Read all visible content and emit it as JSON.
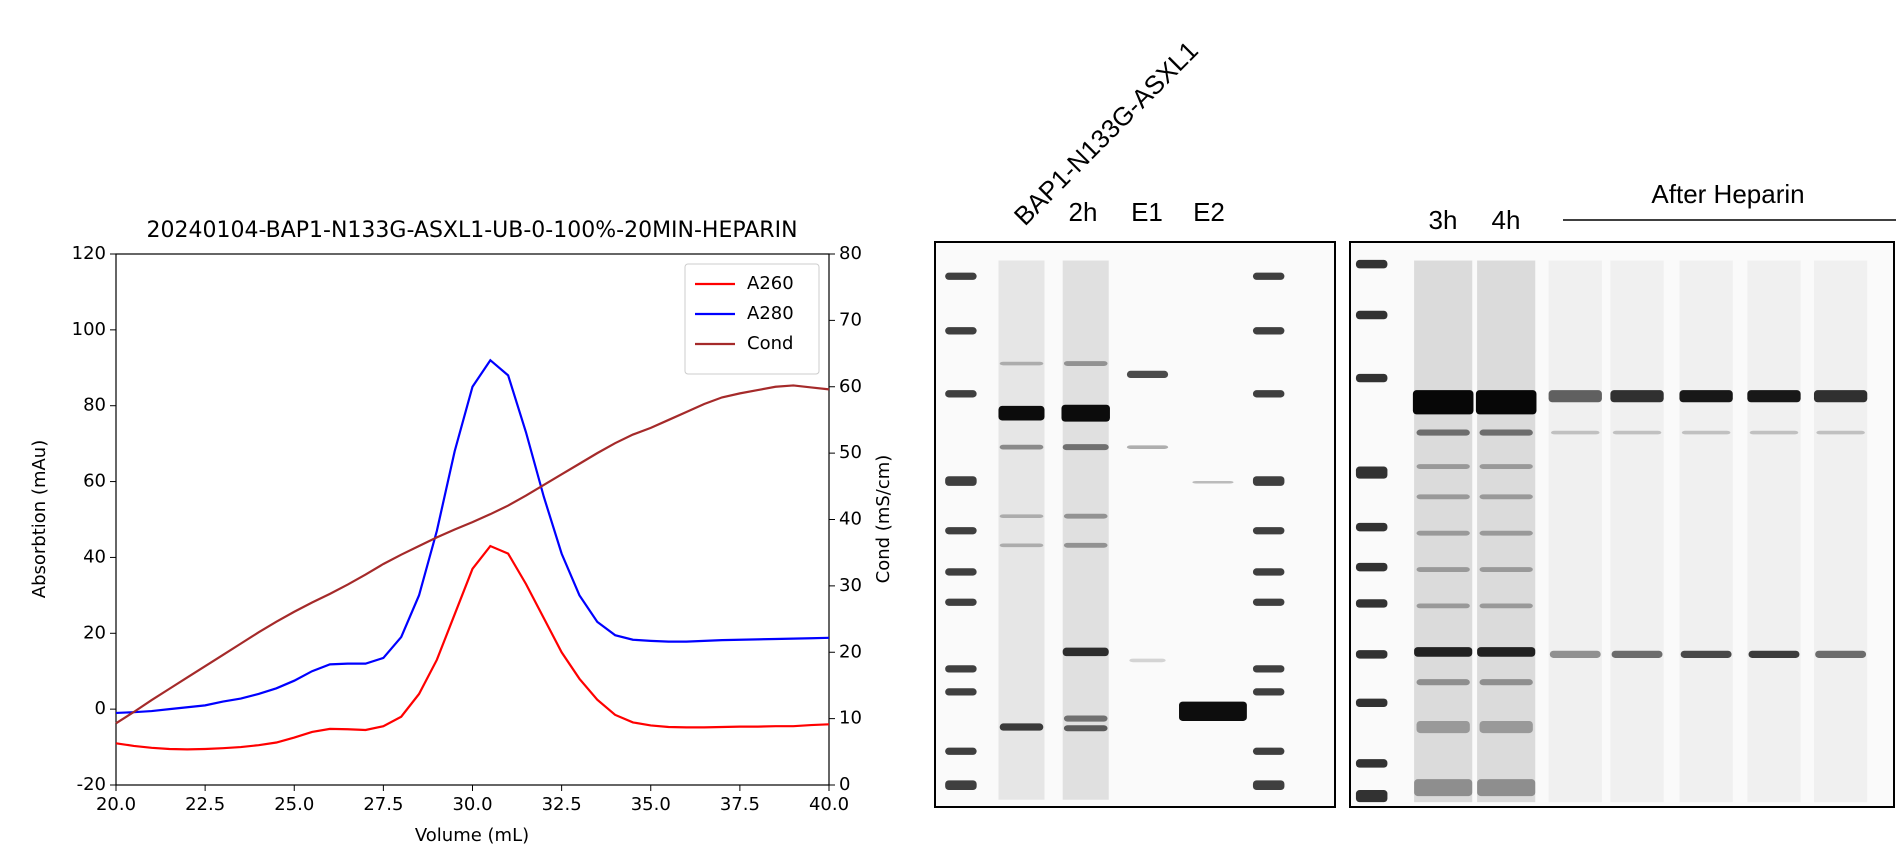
{
  "chart_data": {
    "type": "line",
    "title": "20240104-BAP1-N133G-ASXL1-UB-0-100%-20MIN-HEPARIN",
    "xlabel": "Volume (mL)",
    "ylabel": "Absorbtion (mAu)",
    "y2label": "Cond (mS/cm)",
    "x": [
      20,
      20.5,
      21,
      21.5,
      22,
      22.5,
      23,
      23.5,
      24,
      24.5,
      25,
      25.5,
      26,
      26.5,
      27,
      27.5,
      28,
      28.5,
      29,
      29.5,
      30,
      30.5,
      31,
      31.5,
      32,
      32.5,
      33,
      33.5,
      34,
      34.5,
      35,
      35.5,
      36,
      36.5,
      37,
      37.5,
      38,
      38.5,
      39,
      39.5,
      40
    ],
    "series": [
      {
        "name": "A260",
        "color": "#ff0000",
        "values": [
          -9,
          -9.7,
          -10.2,
          -10.5,
          -10.6,
          -10.5,
          -10.3,
          -10,
          -9.5,
          -8.8,
          -7.5,
          -6,
          -5.2,
          -5.3,
          -5.5,
          -4.5,
          -2,
          4,
          13,
          25,
          37,
          43,
          41,
          33,
          24,
          15,
          8,
          2.5,
          -1.5,
          -3.5,
          -4.3,
          -4.7,
          -4.8,
          -4.8,
          -4.7,
          -4.6,
          -4.6,
          -4.5,
          -4.5,
          -4.2,
          -4
        ]
      },
      {
        "name": "A280",
        "color": "#0000ff",
        "values": [
          -1,
          -0.8,
          -0.5,
          0,
          0.5,
          1,
          2,
          2.8,
          4,
          5.5,
          7.5,
          10,
          11.8,
          12,
          12,
          13.5,
          19,
          30,
          47,
          68,
          85,
          92,
          88,
          73,
          56,
          41,
          30,
          23,
          19.5,
          18.3,
          18,
          17.8,
          17.8,
          18,
          18.2,
          18.3,
          18.4,
          18.5,
          18.6,
          18.7,
          18.8
        ]
      },
      {
        "name": "Cond",
        "color": "#a52a2a",
        "axis": "y2",
        "values": [
          9.3,
          11,
          12.8,
          14.5,
          16.2,
          17.9,
          19.6,
          21.3,
          23,
          24.6,
          26.1,
          27.5,
          28.8,
          30.2,
          31.7,
          33.3,
          34.7,
          36,
          37.3,
          38.5,
          39.6,
          40.8,
          42.1,
          43.6,
          45.2,
          46.8,
          48.4,
          50,
          51.5,
          52.8,
          53.8,
          55,
          56.2,
          57.4,
          58.4,
          59,
          59.5,
          60,
          60.2,
          59.9,
          59.6
        ]
      }
    ],
    "xlim": [
      20,
      40
    ],
    "xticks": [
      {
        "value": 20,
        "label": "20.0"
      },
      22.5,
      {
        "value": 25,
        "label": "25.0"
      },
      27.5,
      {
        "value": 30,
        "label": "30.0"
      },
      32.5,
      {
        "value": 35,
        "label": "35.0"
      },
      37.5,
      {
        "value": 40,
        "label": "40.0"
      }
    ],
    "ylim": [
      -20,
      120
    ],
    "yticks": [
      -20,
      0,
      20,
      40,
      60,
      80,
      100,
      120
    ],
    "y2lim": [
      0,
      80
    ],
    "y2ticks": [
      0,
      10,
      20,
      30,
      40,
      50,
      60,
      70,
      80
    ],
    "legend": "upper right",
    "grid": false
  },
  "gel": {
    "lane_labels": [
      "BAP1-N133G-ASXL1",
      "2h",
      "E1",
      "E2",
      "3h",
      "4h"
    ],
    "group_label": "After Heparin"
  }
}
